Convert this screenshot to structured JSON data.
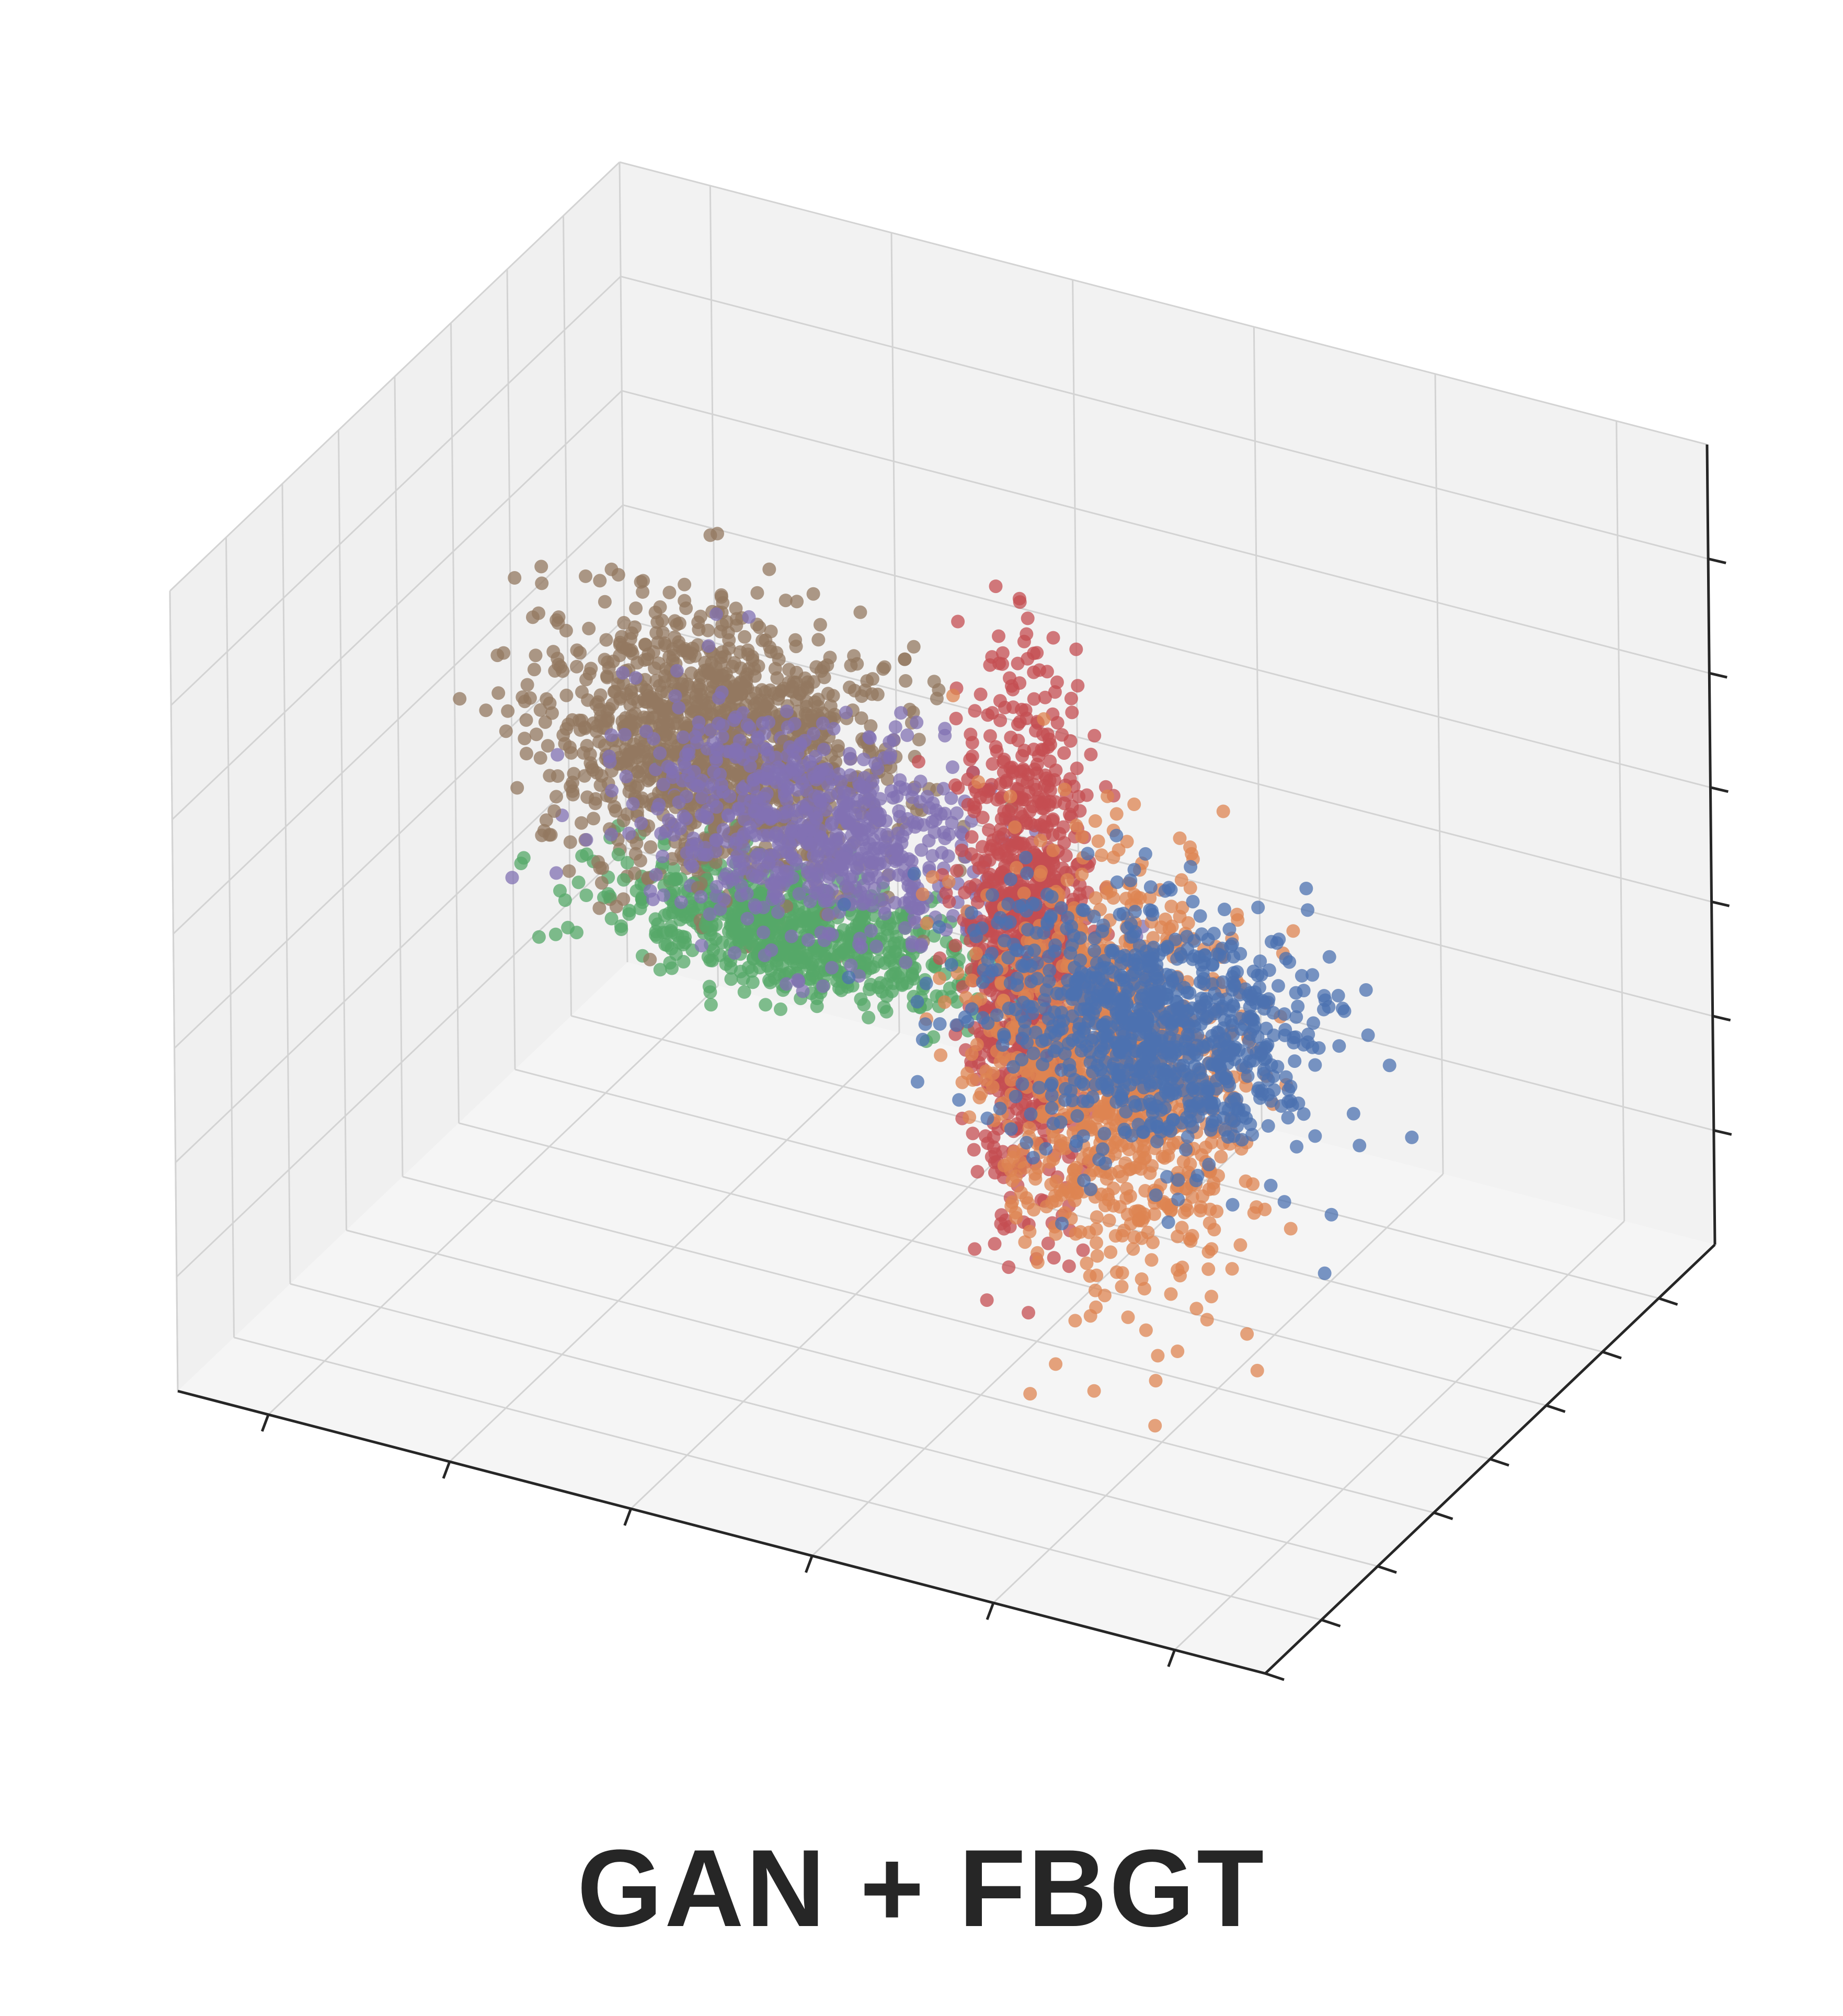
{
  "caption": "GAN + FBGT",
  "chart_data": {
    "type": "scatter",
    "projection": "3d",
    "title": "",
    "xlabel": "",
    "ylabel": "",
    "zlabel": "",
    "tick_labels_visible": false,
    "grid": true,
    "legend": "none",
    "xlim": [
      0,
      6
    ],
    "ylim": [
      0,
      8
    ],
    "zlim": [
      0,
      7
    ],
    "x_ticks": [
      0.5,
      1.5,
      2.5,
      3.5,
      4.5,
      5.5
    ],
    "y_ticks": [
      0,
      1,
      2,
      3,
      4,
      5,
      6,
      7
    ],
    "z_ticks": [
      1,
      2,
      3,
      4,
      5,
      6
    ],
    "series": [
      {
        "color": "#4c72b0",
        "points_per_cluster": 900,
        "center": [
          5.0,
          1.3,
          4.6
        ],
        "spread": [
          0.45,
          0.35,
          0.5
        ]
      },
      {
        "color": "#dd8452",
        "points_per_cluster": 1100,
        "center": [
          4.4,
          2.6,
          3.4
        ],
        "spread": [
          0.35,
          0.25,
          0.9
        ]
      },
      {
        "color": "#c44e52",
        "points_per_cluster": 1000,
        "center": [
          3.5,
          3.9,
          3.5
        ],
        "spread": [
          0.15,
          0.2,
          1.1
        ]
      },
      {
        "color": "#8172b3",
        "points_per_cluster": 700,
        "center": [
          2.1,
          4.6,
          3.6
        ],
        "spread": [
          0.5,
          0.35,
          0.45
        ]
      },
      {
        "color": "#55a868",
        "points_per_cluster": 700,
        "center": [
          1.7,
          5.4,
          2.2
        ],
        "spread": [
          0.5,
          0.3,
          0.2
        ]
      },
      {
        "color": "#937860",
        "points_per_cluster": 1300,
        "center": [
          1.2,
          5.8,
          3.4
        ],
        "spread": [
          0.45,
          0.4,
          0.55
        ]
      }
    ]
  }
}
